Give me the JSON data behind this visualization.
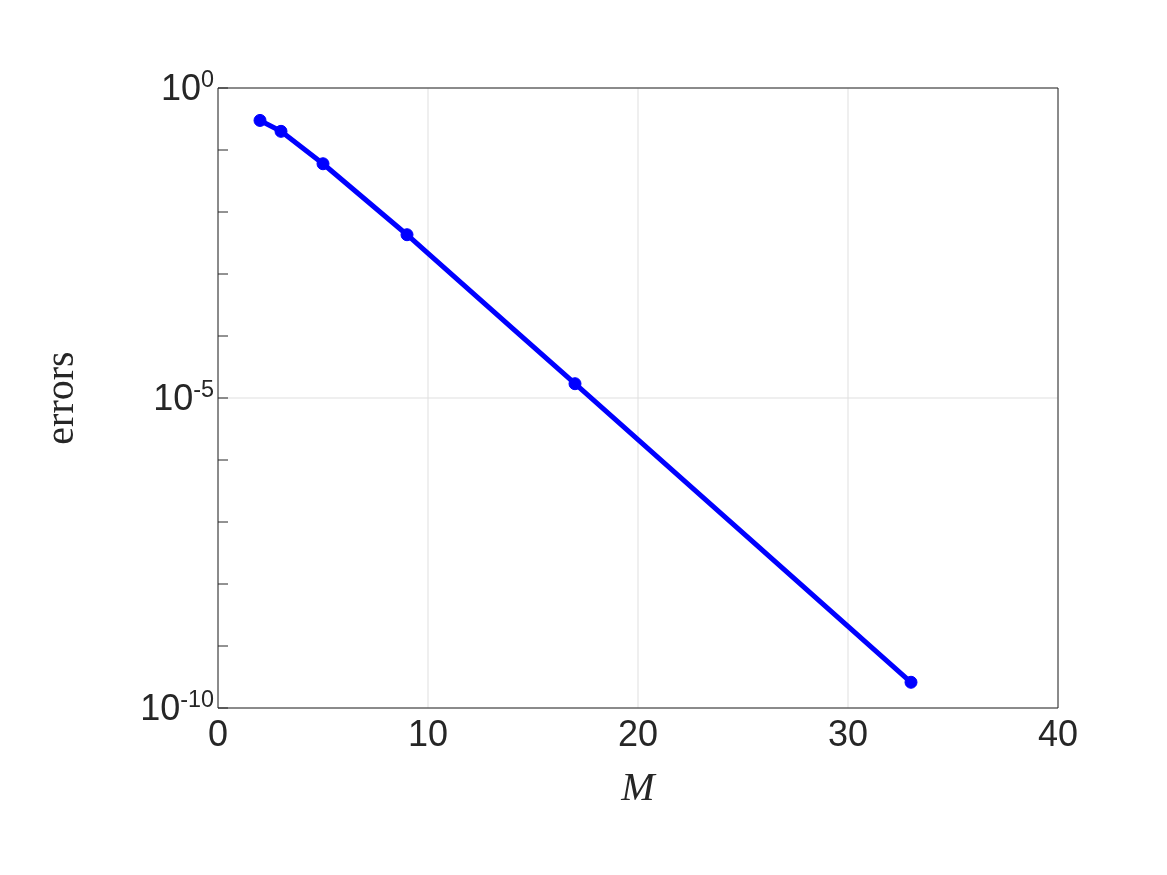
{
  "chart_data": {
    "type": "line",
    "xlabel": "M",
    "ylabel": "errors",
    "x": [
      2,
      3,
      5,
      9,
      17,
      33
    ],
    "series": [
      {
        "color": "#0000ff",
        "values": [
          0.3,
          0.2,
          0.06,
          0.0043,
          1.7e-05,
          2.6e-10
        ]
      }
    ],
    "xlim": [
      0,
      40
    ],
    "xticks": [
      0,
      10,
      20,
      30,
      40
    ],
    "ylim": [
      1e-10,
      1
    ],
    "yticks": [
      {
        "value": 1e-10,
        "label": "10$^{-10}$"
      },
      {
        "value": 1e-09,
        "label": null
      },
      {
        "value": 1e-08,
        "label": null
      },
      {
        "value": 1e-07,
        "label": null
      },
      {
        "value": 1e-06,
        "label": null
      },
      {
        "value": 1e-05,
        "label": "10$^{-5}$"
      },
      {
        "value": 0.0001,
        "label": null
      },
      {
        "value": 0.001,
        "label": null
      },
      {
        "value": 0.01,
        "label": null
      },
      {
        "value": 0.1,
        "label": null
      },
      {
        "value": 1,
        "label": "10$^{0}$"
      }
    ],
    "log": "y",
    "grid": true,
    "marker": "circle",
    "line_style": "solid"
  }
}
